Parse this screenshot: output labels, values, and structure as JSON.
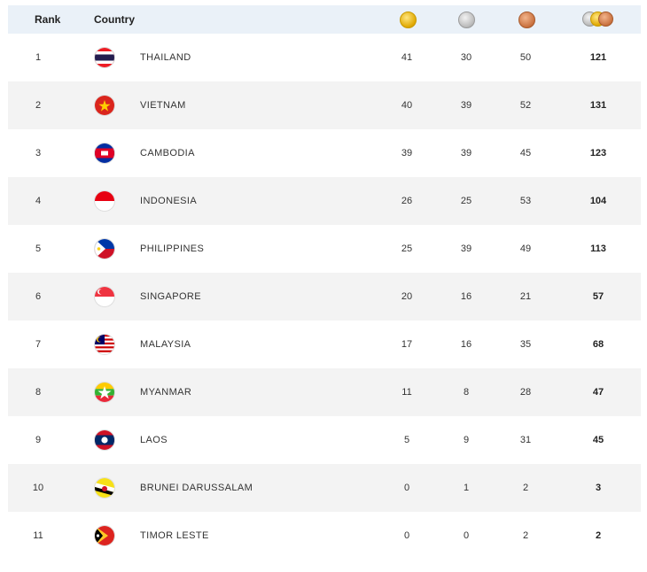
{
  "header": {
    "rank_label": "Rank",
    "country_label": "Country",
    "icons": [
      "gold-medal-icon",
      "silver-medal-icon",
      "bronze-medal-icon",
      "total-medals-icon"
    ]
  },
  "rows": [
    {
      "rank": "1",
      "country": "THAILAND",
      "gold": "41",
      "silver": "30",
      "bronze": "50",
      "total": "121",
      "flag": "thailand-flag-icon"
    },
    {
      "rank": "2",
      "country": "VIETNAM",
      "gold": "40",
      "silver": "39",
      "bronze": "52",
      "total": "131",
      "flag": "vietnam-flag-icon"
    },
    {
      "rank": "3",
      "country": "CAMBODIA",
      "gold": "39",
      "silver": "39",
      "bronze": "45",
      "total": "123",
      "flag": "cambodia-flag-icon"
    },
    {
      "rank": "4",
      "country": "INDONESIA",
      "gold": "26",
      "silver": "25",
      "bronze": "53",
      "total": "104",
      "flag": "indonesia-flag-icon"
    },
    {
      "rank": "5",
      "country": "PHILIPPINES",
      "gold": "25",
      "silver": "39",
      "bronze": "49",
      "total": "113",
      "flag": "philippines-flag-icon"
    },
    {
      "rank": "6",
      "country": "SINGAPORE",
      "gold": "20",
      "silver": "16",
      "bronze": "21",
      "total": "57",
      "flag": "singapore-flag-icon"
    },
    {
      "rank": "7",
      "country": "MALAYSIA",
      "gold": "17",
      "silver": "16",
      "bronze": "35",
      "total": "68",
      "flag": "malaysia-flag-icon"
    },
    {
      "rank": "8",
      "country": "MYANMAR",
      "gold": "11",
      "silver": "8",
      "bronze": "28",
      "total": "47",
      "flag": "myanmar-flag-icon"
    },
    {
      "rank": "9",
      "country": "LAOS",
      "gold": "5",
      "silver": "9",
      "bronze": "31",
      "total": "45",
      "flag": "laos-flag-icon"
    },
    {
      "rank": "10",
      "country": "BRUNEI DARUSSALAM",
      "gold": "0",
      "silver": "1",
      "bronze": "2",
      "total": "3",
      "flag": "brunei-flag-icon"
    },
    {
      "rank": "11",
      "country": "TIMOR LESTE",
      "gold": "0",
      "silver": "0",
      "bronze": "2",
      "total": "2",
      "flag": "timor-leste-flag-icon"
    }
  ],
  "colors": {
    "header_bg": "#eaf1f8",
    "alt_row_bg": "#f3f3f3"
  }
}
